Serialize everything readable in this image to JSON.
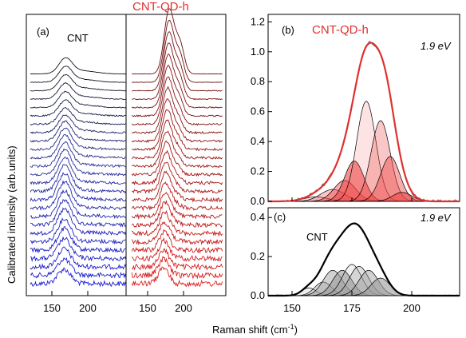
{
  "figure": {
    "xlabel_main": "Raman shift (cm",
    "xlabel_sup": "-1",
    "xlabel_close": ")",
    "ylabel_left": "Calibrated intensity (arb.units)"
  },
  "colors": {
    "cnt_blue": "#1a1ad0",
    "cntqd_red": "#e02020",
    "cntqd_dark": "#6a0e0e",
    "title_red": "#e03030",
    "fit_fill_red": "#ef4444",
    "fit_fill_gray": "#9a9a9a"
  },
  "chart_data": [
    {
      "type": "line",
      "panel_label": "(a)",
      "sub_labels": [
        "CNT",
        "CNT-QD-h"
      ],
      "xticks_left": [
        "150",
        "200"
      ],
      "xticks_right": [
        "150",
        "200"
      ],
      "stack": {
        "cnt_peak": 168,
        "cntqd_peak": 172,
        "trace_count_left": 26,
        "trace_count_right": 26
      }
    },
    {
      "type": "area",
      "panel_label": "(b)",
      "title": "CNT-QD-h",
      "annotation": "1.9 eV",
      "yticks": [
        "0.0",
        "0.2",
        "0.4",
        "0.6",
        "0.8",
        "1.0",
        "1.2"
      ],
      "ylim": [
        0,
        1.25
      ],
      "xlim": [
        140,
        220
      ],
      "components": [
        {
          "center": 160,
          "amp": 0.03,
          "width": 5
        },
        {
          "center": 167,
          "amp": 0.08,
          "width": 5
        },
        {
          "center": 172,
          "amp": 0.14,
          "width": 4.5
        },
        {
          "center": 176,
          "amp": 0.27,
          "width": 4
        },
        {
          "center": 181,
          "amp": 0.67,
          "width": 4
        },
        {
          "center": 187,
          "amp": 0.54,
          "width": 4
        },
        {
          "center": 191,
          "amp": 0.3,
          "width": 4
        },
        {
          "center": 196,
          "amp": 0.06,
          "width": 4
        }
      ],
      "envelope_peak": 1.06
    },
    {
      "type": "area",
      "panel_label": "(c)",
      "title": "CNT",
      "annotation": "1.9 eV",
      "xticks": [
        "150",
        "175",
        "200"
      ],
      "yticks": [
        "0.0",
        "0.2",
        "0.4"
      ],
      "ylim": [
        0,
        0.45
      ],
      "xlim": [
        140,
        220
      ],
      "components": [
        {
          "center": 157,
          "amp": 0.04,
          "width": 3
        },
        {
          "center": 163,
          "amp": 0.07,
          "width": 3.5
        },
        {
          "center": 167,
          "amp": 0.13,
          "width": 4
        },
        {
          "center": 171,
          "amp": 0.13,
          "width": 4
        },
        {
          "center": 175,
          "amp": 0.16,
          "width": 4
        },
        {
          "center": 178,
          "amp": 0.15,
          "width": 4
        },
        {
          "center": 182,
          "amp": 0.13,
          "width": 4
        },
        {
          "center": 187,
          "amp": 0.09,
          "width": 4
        }
      ],
      "envelope_peak": 0.37
    }
  ]
}
